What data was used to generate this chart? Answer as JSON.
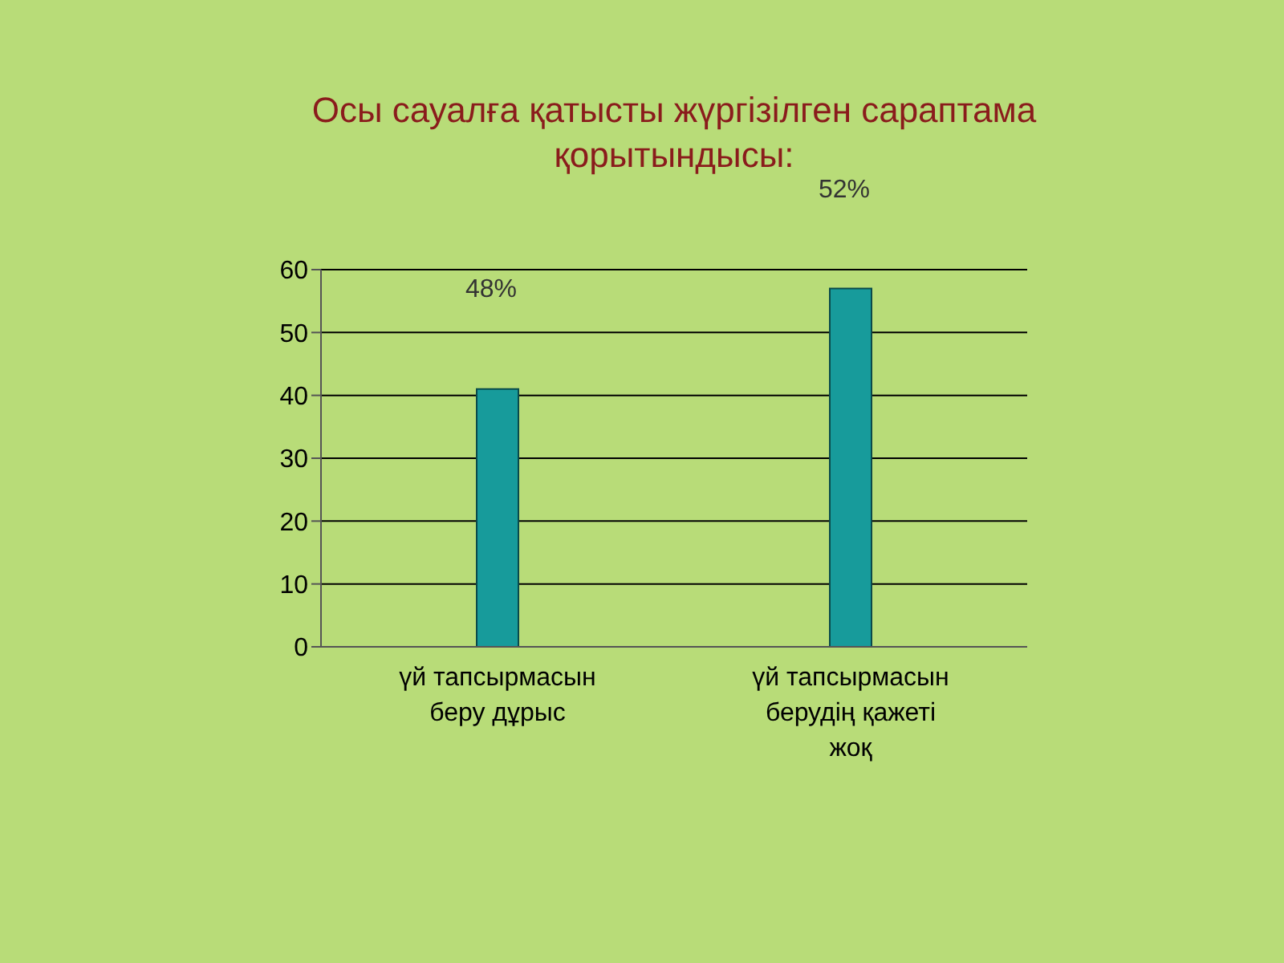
{
  "chart_data": {
    "type": "bar",
    "title": "Осы сауалға қатысты жүргізілген сараптама қорытындысы:",
    "categories": [
      "үй тапсырмасын беру дұрыс",
      "үй тапсырмасын берудің қажеті жоқ"
    ],
    "values": [
      41,
      57
    ],
    "color": "#179b9b",
    "ylim": [
      0,
      60
    ],
    "yticks": [
      0,
      10,
      20,
      30,
      40,
      50,
      60
    ],
    "grid": "y",
    "annotations": [
      "48%",
      "52%"
    ]
  }
}
